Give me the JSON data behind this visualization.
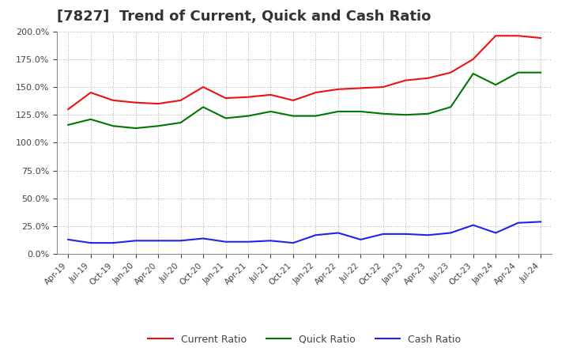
{
  "title": "[7827]  Trend of Current, Quick and Cash Ratio",
  "labels": [
    "Apr-19",
    "Jul-19",
    "Oct-19",
    "Jan-20",
    "Apr-20",
    "Jul-20",
    "Oct-20",
    "Jan-21",
    "Apr-21",
    "Jul-21",
    "Oct-21",
    "Jan-22",
    "Apr-22",
    "Jul-22",
    "Oct-22",
    "Jan-23",
    "Apr-23",
    "Jul-23",
    "Oct-23",
    "Jan-24",
    "Apr-24",
    "Jul-24"
  ],
  "current_ratio": [
    130,
    145,
    138,
    136,
    135,
    138,
    150,
    140,
    141,
    143,
    138,
    145,
    148,
    149,
    150,
    156,
    158,
    163,
    175,
    196,
    196,
    194
  ],
  "quick_ratio": [
    116,
    121,
    115,
    113,
    115,
    118,
    132,
    122,
    124,
    128,
    124,
    124,
    128,
    128,
    126,
    125,
    126,
    132,
    162,
    152,
    163,
    163
  ],
  "cash_ratio": [
    13,
    10,
    10,
    12,
    12,
    12,
    14,
    11,
    11,
    12,
    10,
    17,
    19,
    13,
    18,
    18,
    17,
    19,
    26,
    19,
    28,
    29
  ],
  "current_color": "#EE1111",
  "quick_color": "#007700",
  "cash_color": "#2222EE",
  "ylim": [
    0,
    200
  ],
  "yticks": [
    0,
    25,
    50,
    75,
    100,
    125,
    150,
    175,
    200
  ],
  "background_color": "#FFFFFF",
  "grid_color": "#999999",
  "title_fontsize": 13,
  "title_color": "#333333",
  "tick_color": "#444444"
}
